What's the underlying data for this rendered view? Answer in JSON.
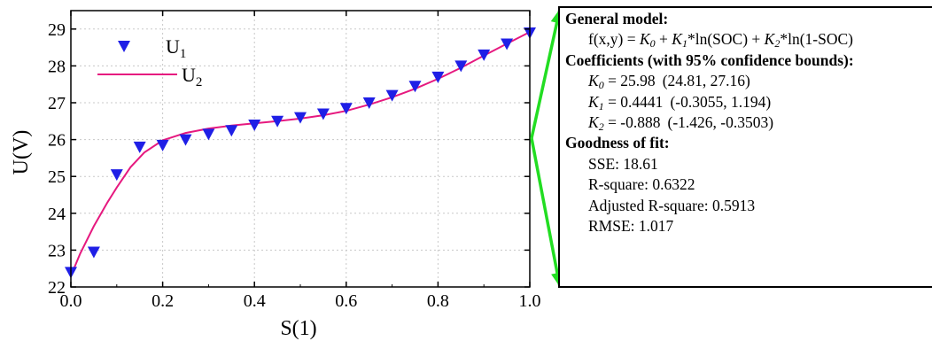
{
  "chart_data": {
    "type": "scatter",
    "xlabel": "S(1)",
    "ylabel": "U(V)",
    "xlim": [
      0.0,
      1.0
    ],
    "ylim": [
      22,
      29.5
    ],
    "x_ticks": [
      "0.0",
      "0.2",
      "0.4",
      "0.6",
      "0.8",
      "1.0"
    ],
    "y_ticks": [
      "22",
      "23",
      "24",
      "25",
      "26",
      "27",
      "28",
      "29"
    ],
    "grid": true,
    "legend_position": "top-left",
    "series": [
      {
        "name": "U1",
        "name_base": "U",
        "name_sub": "1",
        "kind": "markers",
        "marker": "triangle-down",
        "color": "#1f1fe6",
        "x": [
          0.0,
          0.05,
          0.1,
          0.15,
          0.2,
          0.25,
          0.3,
          0.35,
          0.4,
          0.45,
          0.5,
          0.55,
          0.6,
          0.65,
          0.7,
          0.75,
          0.8,
          0.85,
          0.9,
          0.95,
          1.0
        ],
        "y": [
          22.4,
          22.95,
          25.05,
          25.8,
          25.85,
          26.0,
          26.15,
          26.25,
          26.4,
          26.5,
          26.6,
          26.7,
          26.85,
          27.0,
          27.2,
          27.45,
          27.7,
          28.0,
          28.3,
          28.6,
          28.9
        ]
      },
      {
        "name": "U2",
        "name_base": "U",
        "name_sub": "2",
        "kind": "line",
        "color": "#e6197f",
        "x": [
          0.0,
          0.02,
          0.05,
          0.08,
          0.1,
          0.13,
          0.16,
          0.2,
          0.25,
          0.3,
          0.35,
          0.4,
          0.45,
          0.5,
          0.55,
          0.6,
          0.65,
          0.7,
          0.75,
          0.8,
          0.85,
          0.9,
          0.95,
          1.0
        ],
        "y": [
          22.3,
          22.9,
          23.65,
          24.3,
          24.7,
          25.25,
          25.65,
          25.98,
          26.18,
          26.3,
          26.38,
          26.44,
          26.5,
          26.57,
          26.66,
          26.78,
          26.95,
          27.15,
          27.38,
          27.65,
          27.95,
          28.28,
          28.6,
          28.92
        ]
      }
    ]
  },
  "fit_box": {
    "general_model_title": "General model:",
    "model_prefix": "f(x,y) = ",
    "k0_sym": "K",
    "k0_sub": "0",
    "plus1": " + ",
    "k1_sym": "K",
    "k1_sub": "1",
    "term1": "*ln(SOC) + ",
    "k2_sym": "K",
    "k2_sub": "2",
    "term2": "*ln(1-SOC)",
    "coefficients_title": "Coefficients (with 95% confidence bounds):",
    "coefficients": [
      {
        "sym": "K",
        "sub": "0",
        "value": " = 25.98",
        "bounds": "(24.81, 27.16)"
      },
      {
        "sym": "K",
        "sub": "1",
        "value": " = 0.4441",
        "bounds": "(-0.3055, 1.194)"
      },
      {
        "sym": "K",
        "sub": "2",
        "value": " = -0.888",
        "bounds": "(-1.426, -0.3503)"
      }
    ],
    "goodness_title": "Goodness of fit:",
    "goodness": [
      "SSE: 18.61",
      "R-square: 0.6322",
      "Adjusted R-square: 0.5913",
      "RMSE: 1.017"
    ]
  },
  "arrow_color": "#22dd22"
}
